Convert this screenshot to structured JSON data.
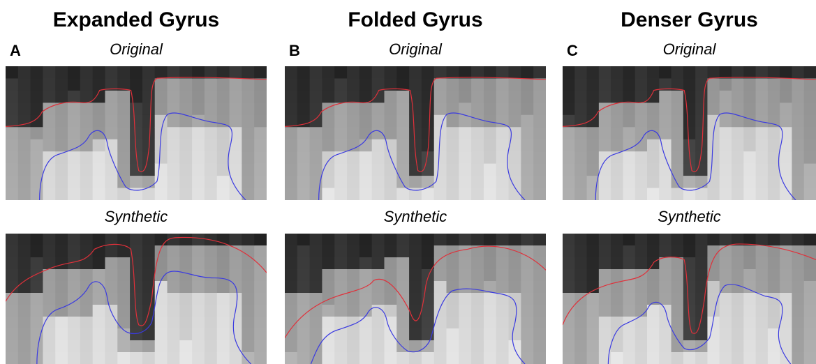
{
  "panels": [
    {
      "title": "Expanded Gyrus",
      "letter": "A",
      "original_label": "Original",
      "synthetic_label": "Synthetic"
    },
    {
      "title": "Folded Gyrus",
      "letter": "B",
      "original_label": "Original",
      "synthetic_label": "Synthetic"
    },
    {
      "title": "Denser Gyrus",
      "letter": "C",
      "original_label": "Original",
      "synthetic_label": "Synthetic"
    }
  ]
}
